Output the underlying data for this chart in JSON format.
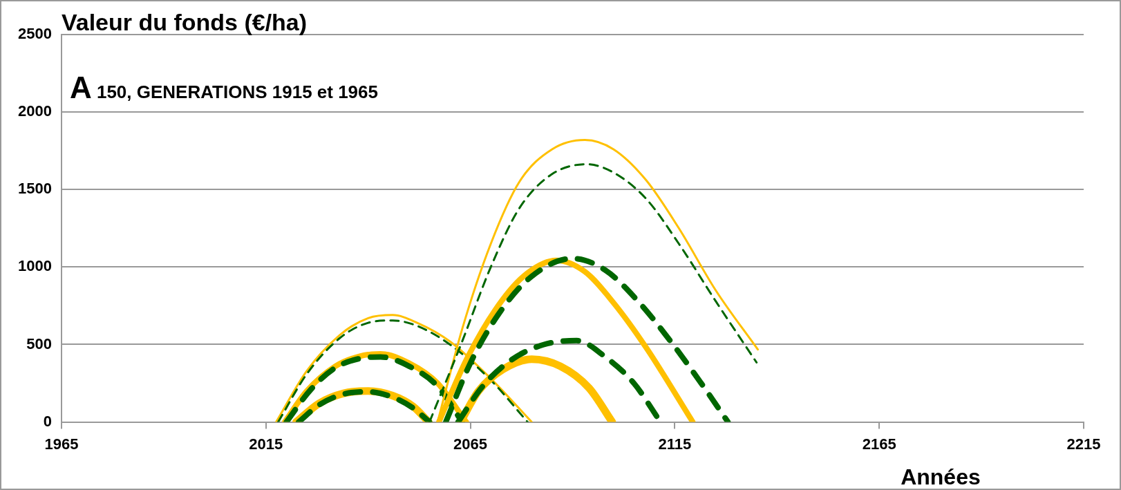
{
  "chart_data": {
    "type": "line",
    "title": null,
    "ylabel": "Valeur du fonds (€/ha)",
    "subtitle": "A 150, GENERATIONS 1915 et 1965",
    "xlabel": "Années",
    "xlim": [
      1965,
      2215
    ],
    "xticks": [
      1965,
      2015,
      2065,
      2115,
      2165,
      2215
    ],
    "ylim": [
      0,
      2500
    ],
    "yticks": [
      0,
      500,
      1000,
      1500,
      2000,
      2500
    ],
    "grid": "y",
    "legend": false,
    "marker": "none",
    "series": [
      {
        "color": "#ffc000",
        "line_style": "solid",
        "x": [
          2017.5,
          2025,
          2033,
          2040,
          2046,
          2052,
          2060,
          2070,
          2080
        ],
        "values": [
          0,
          330,
          560,
          670,
          690,
          640,
          520,
          280,
          0
        ]
      },
      {
        "color": "#006600",
        "line_style": "dashed",
        "x": [
          2018,
          2025,
          2033,
          2040,
          2046,
          2052,
          2060,
          2070,
          2079
        ],
        "values": [
          0,
          310,
          540,
          640,
          655,
          620,
          500,
          270,
          0
        ]
      },
      {
        "color": "#ffc000",
        "line_style": "solid",
        "x": [
          2019.6,
          2025,
          2032,
          2038,
          2043,
          2050,
          2057,
          2064
        ],
        "values": [
          0,
          200,
          360,
          425,
          440,
          380,
          250,
          0
        ]
      },
      {
        "color": "#006600",
        "line_style": "dashed",
        "x": [
          2020,
          2026,
          2032,
          2038,
          2043,
          2050,
          2057,
          2063
        ],
        "values": [
          0,
          210,
          350,
          410,
          420,
          360,
          230,
          0
        ]
      },
      {
        "color": "#ffc000",
        "line_style": "solid",
        "x": [
          2022.4,
          2028,
          2034,
          2040,
          2046,
          2051,
          2054.8
        ],
        "values": [
          0,
          120,
          185,
          200,
          170,
          100,
          0
        ]
      },
      {
        "color": "#006600",
        "line_style": "dashed",
        "x": [
          2023,
          2028,
          2034,
          2040,
          2046,
          2051,
          2055
        ],
        "values": [
          0,
          110,
          180,
          195,
          160,
          90,
          0
        ]
      },
      {
        "color": "#ffc000",
        "line_style": "solid",
        "x": [
          2057,
          2063,
          2070,
          2077,
          2085,
          2093,
          2100,
          2108,
          2116,
          2125,
          2135.3
        ],
        "values": [
          0,
          600,
          1150,
          1550,
          1760,
          1820,
          1760,
          1560,
          1250,
          850,
          468
        ]
      },
      {
        "color": "#006600",
        "line_style": "dashed",
        "x": [
          2055,
          2063,
          2070,
          2077,
          2085,
          2093.5,
          2100,
          2108,
          2116,
          2125,
          2135
        ],
        "values": [
          0,
          520,
          1000,
          1380,
          1600,
          1663,
          1610,
          1440,
          1150,
          780,
          384
        ]
      },
      {
        "color": "#ffc000",
        "line_style": "solid",
        "x": [
          2057.3,
          2064,
          2071,
          2078,
          2086,
          2093,
          2100,
          2108,
          2119.4
        ],
        "values": [
          0,
          400,
          720,
          940,
          1043,
          970,
          770,
          480,
          0
        ]
      },
      {
        "color": "#006600",
        "line_style": "dashed",
        "x": [
          2059,
          2065,
          2072,
          2080,
          2090,
          2098,
          2106,
          2114,
          2122,
          2128
        ],
        "values": [
          0,
          380,
          700,
          940,
          1055,
          980,
          780,
          520,
          230,
          0
        ]
      },
      {
        "color": "#ffc000",
        "line_style": "solid",
        "x": [
          2062.6,
          2067,
          2073,
          2080,
          2087,
          2094,
          2099.7
        ],
        "values": [
          0,
          200,
          340,
          405,
          360,
          220,
          0
        ]
      },
      {
        "color": "#006600",
        "line_style": "dashed",
        "x": [
          2062,
          2068,
          2075,
          2083,
          2091,
          2098,
          2105,
          2111.5
        ],
        "values": [
          0,
          230,
          400,
          500,
          525,
          420,
          250,
          0
        ]
      }
    ]
  }
}
